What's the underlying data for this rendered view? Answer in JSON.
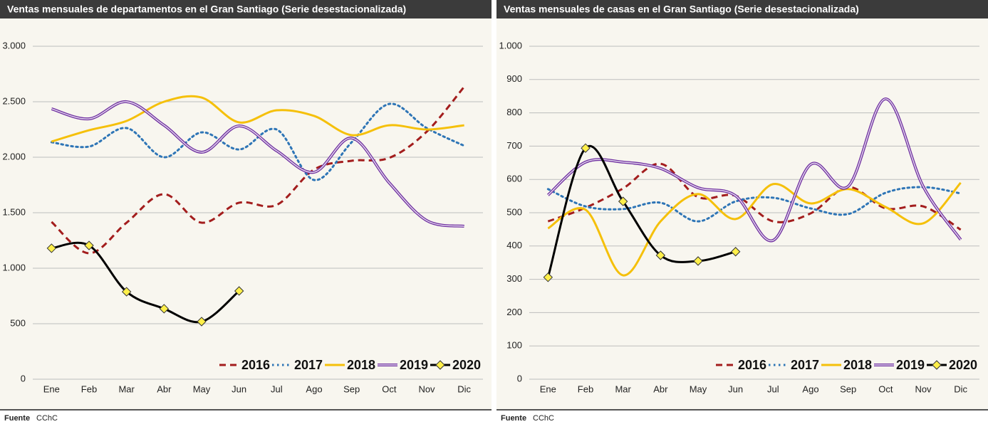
{
  "chart_data": [
    {
      "type": "line",
      "title": "Ventas mensuales de departamentos en el Gran Santiago (Serie desestacionalizada)",
      "source_label": "Fuente",
      "source": "CChC",
      "categories": [
        "Ene",
        "Feb",
        "Mar",
        "Abr",
        "May",
        "Jun",
        "Jul",
        "Ago",
        "Sep",
        "Oct",
        "Nov",
        "Dic"
      ],
      "ylim": [
        0,
        3000
      ],
      "yticks": [
        0,
        500,
        {
          "value": 1000,
          "label": "1.000"
        },
        {
          "value": 1500,
          "label": "1.500"
        },
        {
          "value": 2000,
          "label": "2.000"
        },
        {
          "value": 2500,
          "label": "2.500"
        },
        {
          "value": 3000,
          "label": "3.000"
        }
      ],
      "grid": true,
      "legend": "lower right",
      "series": [
        {
          "name": "2016",
          "color": "#a31d1d",
          "dash": "dashed",
          "values": [
            1417,
            1135,
            1410,
            1667,
            1410,
            1590,
            1570,
            1890,
            1968,
            1994,
            2230,
            2635
          ]
        },
        {
          "name": "2017",
          "color": "#2e75b6",
          "dash": "dotted",
          "values": [
            2135,
            2096,
            2263,
            2000,
            2224,
            2070,
            2250,
            1795,
            2135,
            2480,
            2263,
            2103
          ]
        },
        {
          "name": "2018",
          "color": "#f5c00a",
          "dash": "solid",
          "values": [
            2141,
            2243,
            2327,
            2500,
            2538,
            2314,
            2423,
            2372,
            2199,
            2288,
            2250,
            2288
          ]
        },
        {
          "name": "2019",
          "color": "#7030a0",
          "dash": "double",
          "values": [
            2436,
            2346,
            2500,
            2288,
            2045,
            2282,
            2058,
            1865,
            2173,
            1770,
            1430,
            1378
          ]
        },
        {
          "name": "2020",
          "color": "#000000",
          "dash": "solid",
          "marker": "diamond",
          "marker_color": "#ffef4a",
          "values": [
            1180,
            1205,
            788,
            635,
            519,
            795,
            null,
            null,
            null,
            null,
            null,
            null
          ]
        }
      ]
    },
    {
      "type": "line",
      "title": "Ventas mensuales de casas en el Gran Santiago (Serie desestacionalizada)",
      "source_label": "Fuente",
      "source": "CChC",
      "categories": [
        "Ene",
        "Feb",
        "Mar",
        "Abr",
        "May",
        "Jun",
        "Jul",
        "Ago",
        "Sep",
        "Oct",
        "Nov",
        "Dic"
      ],
      "ylim": [
        0,
        1000
      ],
      "yticks": [
        0,
        100,
        200,
        300,
        400,
        500,
        600,
        700,
        800,
        900,
        {
          "value": 1000,
          "label": "1.000"
        }
      ],
      "grid": true,
      "legend": "lower right",
      "series": [
        {
          "name": "2016",
          "color": "#a31d1d",
          "dash": "dashed",
          "values": [
            474,
            515,
            573,
            647,
            547,
            551,
            474,
            498,
            577,
            513,
            519,
            449
          ]
        },
        {
          "name": "2017",
          "color": "#2e75b6",
          "dash": "dotted",
          "values": [
            571,
            519,
            511,
            530,
            474,
            534,
            545,
            513,
            496,
            560,
            577,
            558
          ]
        },
        {
          "name": "2018",
          "color": "#f5c00a",
          "dash": "solid",
          "values": [
            453,
            509,
            312,
            474,
            556,
            481,
            586,
            528,
            571,
            517,
            468,
            590
          ]
        },
        {
          "name": "2019",
          "color": "#7030a0",
          "dash": "double",
          "values": [
            553,
            652,
            652,
            633,
            575,
            551,
            417,
            645,
            579,
            842,
            579,
            419
          ]
        },
        {
          "name": "2020",
          "color": "#000000",
          "dash": "solid",
          "marker": "diamond",
          "marker_color": "#ffef4a",
          "values": [
            306,
            694,
            534,
            372,
            355,
            383,
            null,
            null,
            null,
            null,
            null,
            null
          ]
        }
      ]
    }
  ]
}
